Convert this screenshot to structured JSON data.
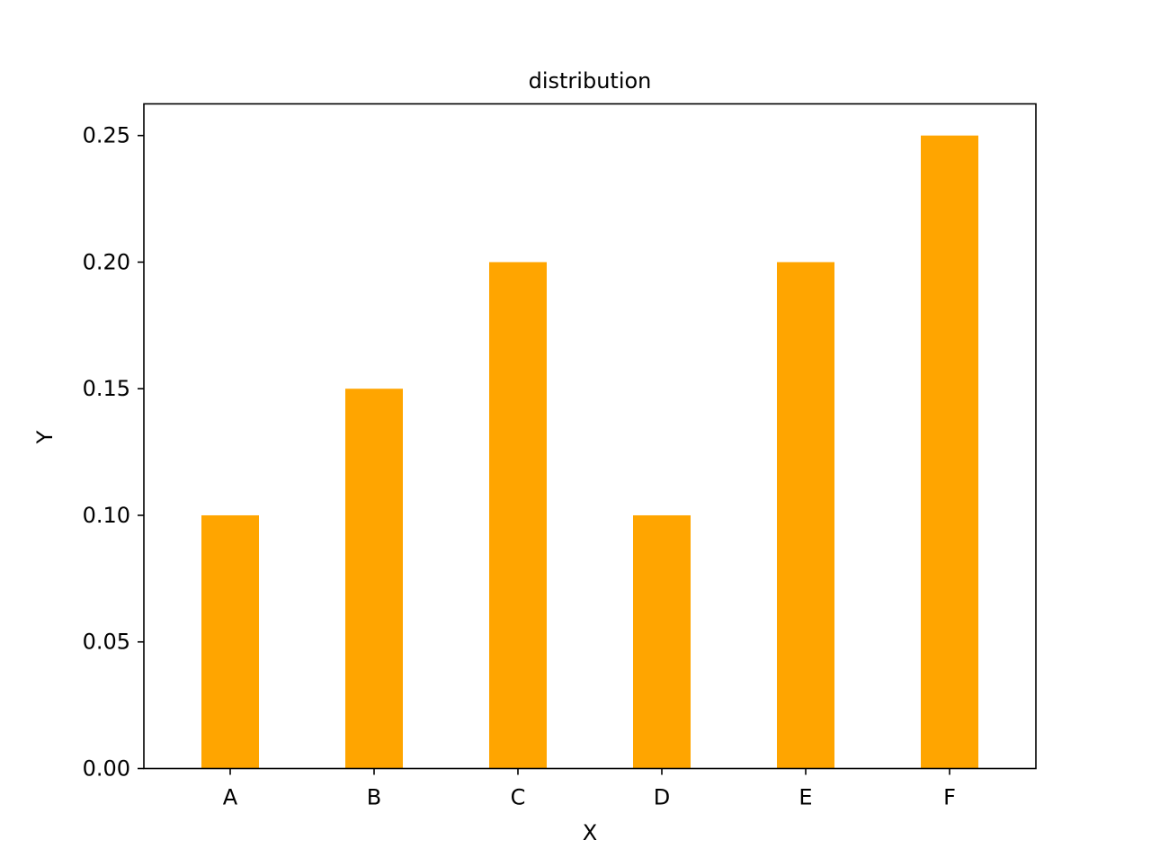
{
  "chart_data": {
    "type": "bar",
    "title": "distribution",
    "xlabel": "X",
    "ylabel": "Y",
    "categories": [
      "A",
      "B",
      "C",
      "D",
      "E",
      "F"
    ],
    "values": [
      0.1,
      0.15,
      0.2,
      0.1,
      0.2,
      0.25
    ],
    "ylim": [
      0,
      0.2625
    ],
    "yticks": [
      0.0,
      0.05,
      0.1,
      0.15,
      0.2,
      0.25
    ],
    "ytick_labels": [
      "0.00",
      "0.05",
      "0.10",
      "0.15",
      "0.20",
      "0.25"
    ],
    "bar_color": "#ffa500",
    "grid": false,
    "legend": "none"
  }
}
